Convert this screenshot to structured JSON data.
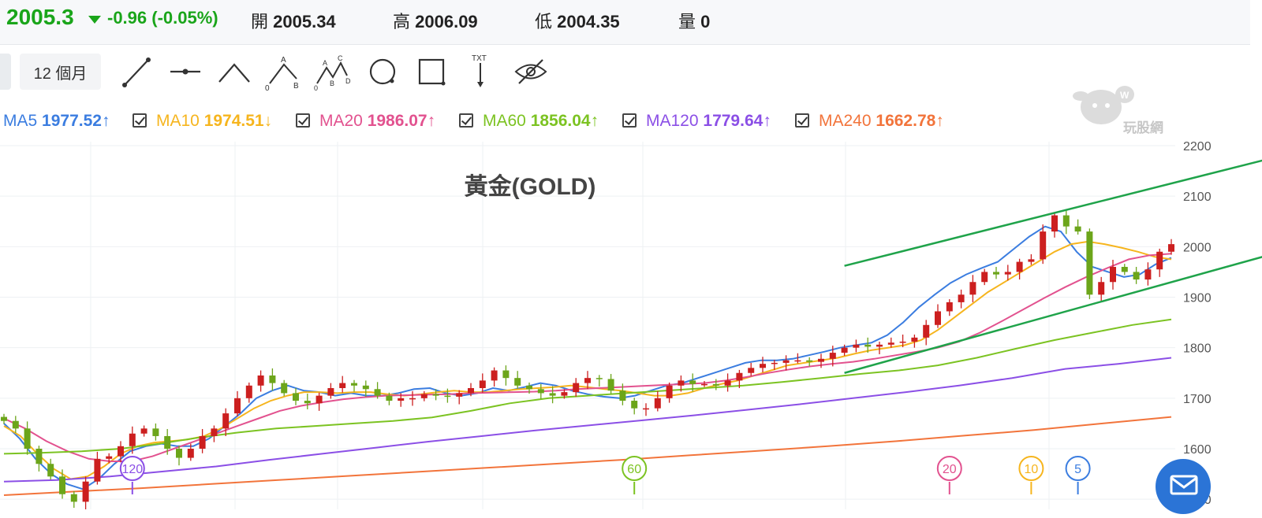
{
  "quote": {
    "price": "2005.3",
    "change": "-0.96 (-0.05%)",
    "open_label": "開",
    "open": "2005.34",
    "high_label": "高",
    "high": "2006.09",
    "low_label": "低",
    "low": "2004.35",
    "volume_label": "量",
    "volume": "0"
  },
  "toolbar": {
    "range_label": "12 個月",
    "tools": [
      "trend-line-icon",
      "horizontal-line-icon",
      "peak-line-icon",
      "abc-pattern-icon",
      "abcd-pattern-icon",
      "circle-icon",
      "rectangle-icon",
      "text-tool-icon",
      "hide-drawings-icon"
    ]
  },
  "indicators": [
    {
      "name": "MA5",
      "value": "1977.52",
      "dir": "↑",
      "color": "#3b7de0"
    },
    {
      "name": "MA10",
      "value": "1974.51",
      "dir": "↓",
      "color": "#f6b51e"
    },
    {
      "name": "MA20",
      "value": "1986.07",
      "dir": "↑",
      "color": "#e2528f"
    },
    {
      "name": "MA60",
      "value": "1856.04",
      "dir": "↑",
      "color": "#7cc322"
    },
    {
      "name": "MA120",
      "value": "1779.64",
      "dir": "↑",
      "color": "#8b4fe6"
    },
    {
      "name": "MA240",
      "value": "1662.78",
      "dir": "↑",
      "color": "#f2743b"
    }
  ],
  "watermark": "玩股網",
  "chart_data": {
    "type": "candlestick",
    "title": "黃金(GOLD)",
    "ylim": [
      1480,
      2200
    ],
    "y_ticks": [
      2200,
      2100,
      2000,
      1900,
      1800,
      1700,
      1600,
      1500
    ],
    "up_color": "#cc1f1f",
    "down_color": "#6ca51a",
    "closes": [
      1655,
      1640,
      1600,
      1570,
      1545,
      1510,
      1495,
      1535,
      1580,
      1585,
      1605,
      1630,
      1640,
      1625,
      1600,
      1582,
      1600,
      1625,
      1640,
      1670,
      1700,
      1725,
      1745,
      1730,
      1710,
      1695,
      1690,
      1705,
      1720,
      1730,
      1725,
      1718,
      1705,
      1695,
      1700,
      1700,
      1708,
      1705,
      1703,
      1710,
      1720,
      1735,
      1755,
      1740,
      1725,
      1718,
      1710,
      1705,
      1712,
      1730,
      1740,
      1738,
      1715,
      1695,
      1680,
      1680,
      1700,
      1725,
      1735,
      1728,
      1728,
      1725,
      1735,
      1750,
      1760,
      1768,
      1770,
      1775,
      1775,
      1772,
      1778,
      1790,
      1800,
      1806,
      1802,
      1806,
      1810,
      1812,
      1820,
      1845,
      1872,
      1890,
      1905,
      1930,
      1950,
      1945,
      1950,
      1970,
      1975,
      2030,
      2062,
      2040,
      2030,
      1905,
      1930,
      1960,
      1950,
      1935,
      1955,
      1990,
      2005
    ],
    "ma_series": [
      {
        "name": "MA5",
        "values": [
          1650,
          1620,
          1580,
          1550,
          1530,
          1520,
          1540,
          1570,
          1595,
          1605,
          1610,
          1605,
          1605,
          1620,
          1645,
          1670,
          1700,
          1715,
          1725,
          1715,
          1712,
          1705,
          1710,
          1705,
          1705,
          1710,
          1718,
          1720,
          1710,
          1705,
          1710,
          1720,
          1715,
          1722,
          1730,
          1725,
          1715,
          1708,
          1703,
          1700,
          1705,
          1715,
          1725,
          1730,
          1740,
          1750,
          1760,
          1770,
          1775,
          1775,
          1778,
          1785,
          1792,
          1800,
          1805,
          1810,
          1825,
          1850,
          1880,
          1905,
          1928,
          1945,
          1958,
          1970,
          1995,
          2020,
          2040,
          2030,
          1990,
          1960,
          1950,
          1940,
          1945,
          1965,
          1978
        ]
      },
      {
        "name": "MA10",
        "values": [
          1645,
          1625,
          1590,
          1560,
          1540,
          1545,
          1565,
          1590,
          1605,
          1612,
          1615,
          1618,
          1625,
          1640,
          1660,
          1680,
          1695,
          1705,
          1712,
          1712,
          1710,
          1712,
          1712,
          1708,
          1705,
          1708,
          1712,
          1715,
          1712,
          1712,
          1715,
          1718,
          1720,
          1722,
          1725,
          1722,
          1718,
          1715,
          1710,
          1705,
          1705,
          1710,
          1720,
          1728,
          1735,
          1745,
          1755,
          1765,
          1770,
          1775,
          1780,
          1788,
          1795,
          1800,
          1805,
          1815,
          1835,
          1860,
          1885,
          1910,
          1930,
          1950,
          1970,
          1990,
          2005,
          2010,
          2005,
          1998,
          1990,
          1980,
          1975
        ]
      },
      {
        "name": "MA20",
        "values": [
          1660,
          1640,
          1615,
          1595,
          1580,
          1575,
          1575,
          1585,
          1600,
          1615,
          1630,
          1645,
          1660,
          1675,
          1685,
          1692,
          1698,
          1702,
          1705,
          1706,
          1707,
          1708,
          1710,
          1711,
          1712,
          1713,
          1715,
          1718,
          1720,
          1722,
          1724,
          1726,
          1728,
          1730,
          1735,
          1742,
          1750,
          1757,
          1763,
          1768,
          1772,
          1778,
          1785,
          1792,
          1800,
          1812,
          1830,
          1852,
          1875,
          1898,
          1920,
          1940,
          1958,
          1975,
          1983,
          1986
        ]
      },
      {
        "name": "MA60",
        "values": [
          1590,
          1592,
          1595,
          1600,
          1610,
          1622,
          1632,
          1640,
          1645,
          1650,
          1655,
          1662,
          1675,
          1690,
          1700,
          1705,
          1710,
          1715,
          1720,
          1725,
          1732,
          1740,
          1748,
          1755,
          1765,
          1780,
          1798,
          1815,
          1830,
          1845,
          1856
        ]
      },
      {
        "name": "MA120",
        "values": [
          1535,
          1538,
          1545,
          1555,
          1565,
          1578,
          1590,
          1602,
          1614,
          1625,
          1636,
          1646,
          1656,
          1666,
          1677,
          1688,
          1700,
          1712,
          1725,
          1740,
          1758,
          1768,
          1780
        ]
      },
      {
        "name": "MA240",
        "values": [
          1508,
          1515,
          1522,
          1530,
          1538,
          1546,
          1554,
          1562,
          1570,
          1578,
          1587,
          1596,
          1605,
          1615,
          1626,
          1637,
          1650,
          1663
        ]
      }
    ],
    "channel_lines": [
      {
        "from": [
          72,
          1962
        ],
        "to": [
          103,
          2150
        ]
      },
      {
        "from": [
          72,
          1750
        ],
        "to": [
          103,
          1960
        ]
      }
    ],
    "ma_markers": [
      {
        "label": "120",
        "bar": 11,
        "color": "#8b4fe6"
      },
      {
        "label": "60",
        "bar": 54,
        "color": "#7cc322"
      },
      {
        "label": "20",
        "bar": 81,
        "color": "#e2528f"
      },
      {
        "label": "10",
        "bar": 88,
        "color": "#f6b51e"
      },
      {
        "label": "5",
        "bar": 92,
        "color": "#3b7de0"
      }
    ]
  }
}
